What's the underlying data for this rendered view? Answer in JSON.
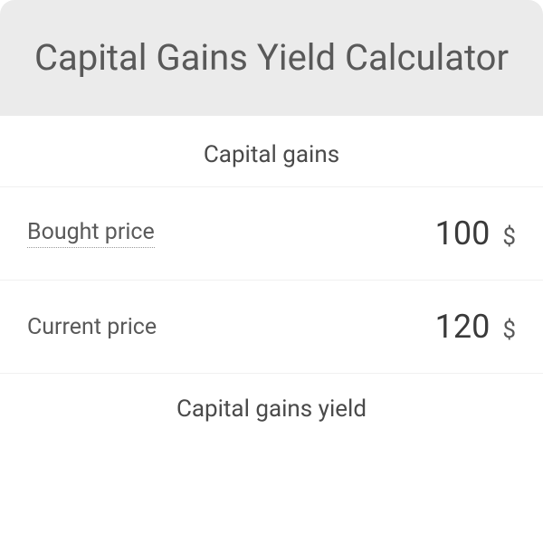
{
  "header": {
    "title": "Capital Gains Yield Calculator"
  },
  "sections": {
    "capital_gains": {
      "title": "Capital gains",
      "rows": [
        {
          "label": "Bought price",
          "value": "100",
          "unit": "$",
          "dotted": true
        },
        {
          "label": "Current price",
          "value": "120",
          "unit": "$",
          "dotted": false
        }
      ]
    },
    "capital_gains_yield": {
      "title": "Capital gains yield"
    }
  },
  "colors": {
    "header_bg": "#ebebeb",
    "title_text": "#595959",
    "body_bg": "#ffffff",
    "label_text": "#595959",
    "value_text": "#3a3a3a",
    "border": "#f0f0f0"
  }
}
